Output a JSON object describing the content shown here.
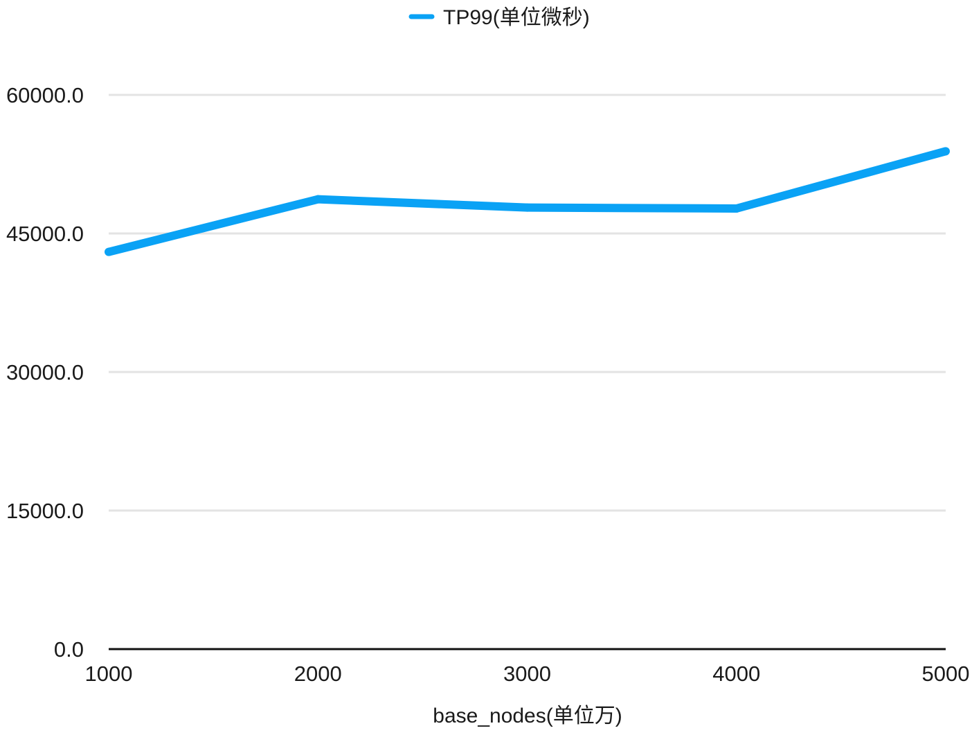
{
  "chart_data": {
    "type": "line",
    "title": "",
    "xlabel": "base_nodes(单位万)",
    "ylabel": "",
    "x": [
      1000,
      2000,
      3000,
      4000,
      5000
    ],
    "x_tick_labels": [
      "1000",
      "2000",
      "3000",
      "4000",
      "5000"
    ],
    "y_tick_labels": [
      "0.0",
      "15000.0",
      "30000.0",
      "45000.0",
      "60000.0"
    ],
    "y_ticks": [
      0,
      15000,
      30000,
      45000,
      60000
    ],
    "ylim": [
      0,
      60000
    ],
    "xlim": [
      1000,
      5000
    ],
    "grid": true,
    "legend_position": "top-center",
    "series": [
      {
        "name": "TP99(单位微秒)",
        "color": "#0aa2f5",
        "values": [
          43000,
          48700,
          47800,
          47700,
          53900
        ]
      }
    ]
  }
}
